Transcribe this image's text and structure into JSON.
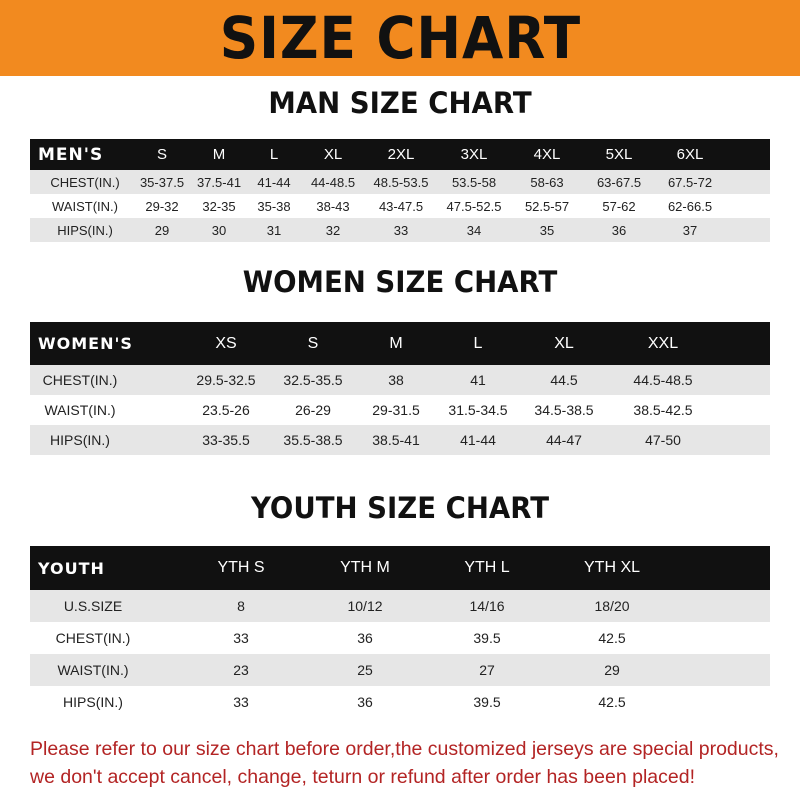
{
  "title": "SIZE CHART",
  "colors": {
    "banner": "#f28a1f",
    "header_row": "#111111",
    "stripe": "#e6e6e6",
    "notice": "#b32424"
  },
  "men": {
    "title": "MAN SIZE CHART",
    "header": [
      "MEN'S",
      "S",
      "M",
      "L",
      "XL",
      "2XL",
      "3XL",
      "4XL",
      "5XL",
      "6XL"
    ],
    "rows": [
      [
        "CHEST(IN.)",
        "35-37.5",
        "37.5-41",
        "41-44",
        "44-48.5",
        "48.5-53.5",
        "53.5-58",
        "58-63",
        "63-67.5",
        "67.5-72"
      ],
      [
        "WAIST(IN.)",
        "29-32",
        "32-35",
        "35-38",
        "38-43",
        "43-47.5",
        "47.5-52.5",
        "52.5-57",
        "57-62",
        "62-66.5"
      ],
      [
        "HIPS(IN.)",
        "29",
        "30",
        "31",
        "32",
        "33",
        "34",
        "35",
        "36",
        "37"
      ]
    ]
  },
  "women": {
    "title": "WOMEN SIZE CHART",
    "header": [
      "WOMEN'S",
      "XS",
      "S",
      "M",
      "L",
      "XL",
      "XXL"
    ],
    "rows": [
      [
        "CHEST(IN.)",
        "29.5-32.5",
        "32.5-35.5",
        "38",
        "41",
        "44.5",
        "44.5-48.5"
      ],
      [
        "WAIST(IN.)",
        "23.5-26",
        "26-29",
        "29-31.5",
        "31.5-34.5",
        "34.5-38.5",
        "38.5-42.5"
      ],
      [
        "HIPS(IN.)",
        "33-35.5",
        "35.5-38.5",
        "38.5-41",
        "41-44",
        "44-47",
        "47-50"
      ]
    ]
  },
  "youth": {
    "title": "YOUTH SIZE CHART",
    "header": [
      "YOUTH",
      "YTH S",
      "YTH M",
      "YTH L",
      "YTH XL"
    ],
    "rows": [
      [
        "U.S.SIZE",
        "8",
        "10/12",
        "14/16",
        "18/20"
      ],
      [
        "CHEST(IN.)",
        "33",
        "36",
        "39.5",
        "42.5"
      ],
      [
        "WAIST(IN.)",
        "23",
        "25",
        "27",
        "29"
      ],
      [
        "HIPS(IN.)",
        "33",
        "36",
        "39.5",
        "42.5"
      ]
    ]
  },
  "notice": [
    "Please refer to our size chart before order,the customized jerseys are special products,",
    "we don't accept cancel, change, teturn or refund after order has been placed!"
  ]
}
